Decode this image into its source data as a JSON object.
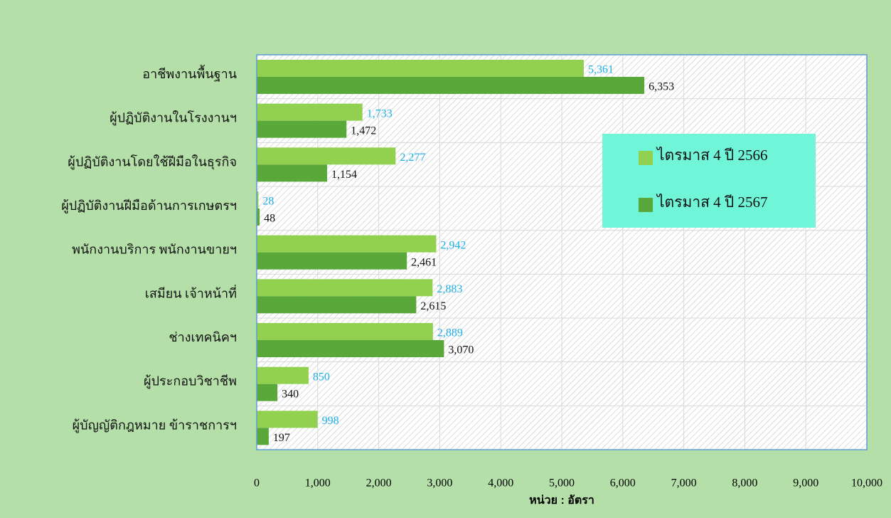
{
  "chart_data": {
    "type": "barh",
    "x_label": "หน่วย : อัตรา",
    "categories": [
      "อาชีพงานพื้นฐาน",
      "ผู้ปฏิบัติงานในโรงงานฯ",
      "ผู้ปฏิบัติงานโดยใช้ฝีมือในธุรกิจ",
      "ผู้ปฏิบัติงานฝีมือด้านการเกษตรฯ",
      "พนักงานบริการ พนักงานขายฯ",
      "เสมียน เจ้าหน้าที่",
      "ช่างเทคนิคฯ",
      "ผู้ประกอบวิชาชีพ",
      "ผู้บัญญัติกฎหมาย ข้าราชการฯ"
    ],
    "series": [
      {
        "name": "ไตรมาส 4 ปี 2566",
        "color": "#92d050",
        "label_color": "#1fb0e8",
        "values": [
          5361,
          1733,
          2277,
          28,
          2942,
          2883,
          2889,
          850,
          998
        ],
        "value_labels": [
          "5,361",
          "1,733",
          "2,277",
          "28",
          "2,942",
          "2,883",
          "2,889",
          "850",
          "998"
        ]
      },
      {
        "name": "ไตรมาส 4 ปี 2567",
        "color": "#5aa83a",
        "label_color": "#111111",
        "values": [
          6353,
          1472,
          1154,
          48,
          2461,
          2615,
          3070,
          340,
          197
        ],
        "value_labels": [
          "6,353",
          "1,472",
          "1,154",
          "48",
          "2,461",
          "2,615",
          "3,070",
          "340",
          "197"
        ]
      }
    ],
    "xlim": [
      0,
      10000
    ],
    "xticks": [
      0,
      {
        "value": 1000,
        "label": "1,000"
      },
      {
        "value": 2000,
        "label": "2,000"
      },
      {
        "value": 3000,
        "label": "3,000"
      },
      {
        "value": 4000,
        "label": "4,000"
      },
      {
        "value": 5000,
        "label": "5,000"
      },
      {
        "value": 6000,
        "label": "6,000"
      },
      {
        "value": 7000,
        "label": "7,000"
      },
      {
        "value": 8000,
        "label": "8,000"
      },
      {
        "value": 9000,
        "label": "9,000"
      },
      {
        "value": 10000,
        "label": "10,000"
      }
    ],
    "grid": true
  }
}
